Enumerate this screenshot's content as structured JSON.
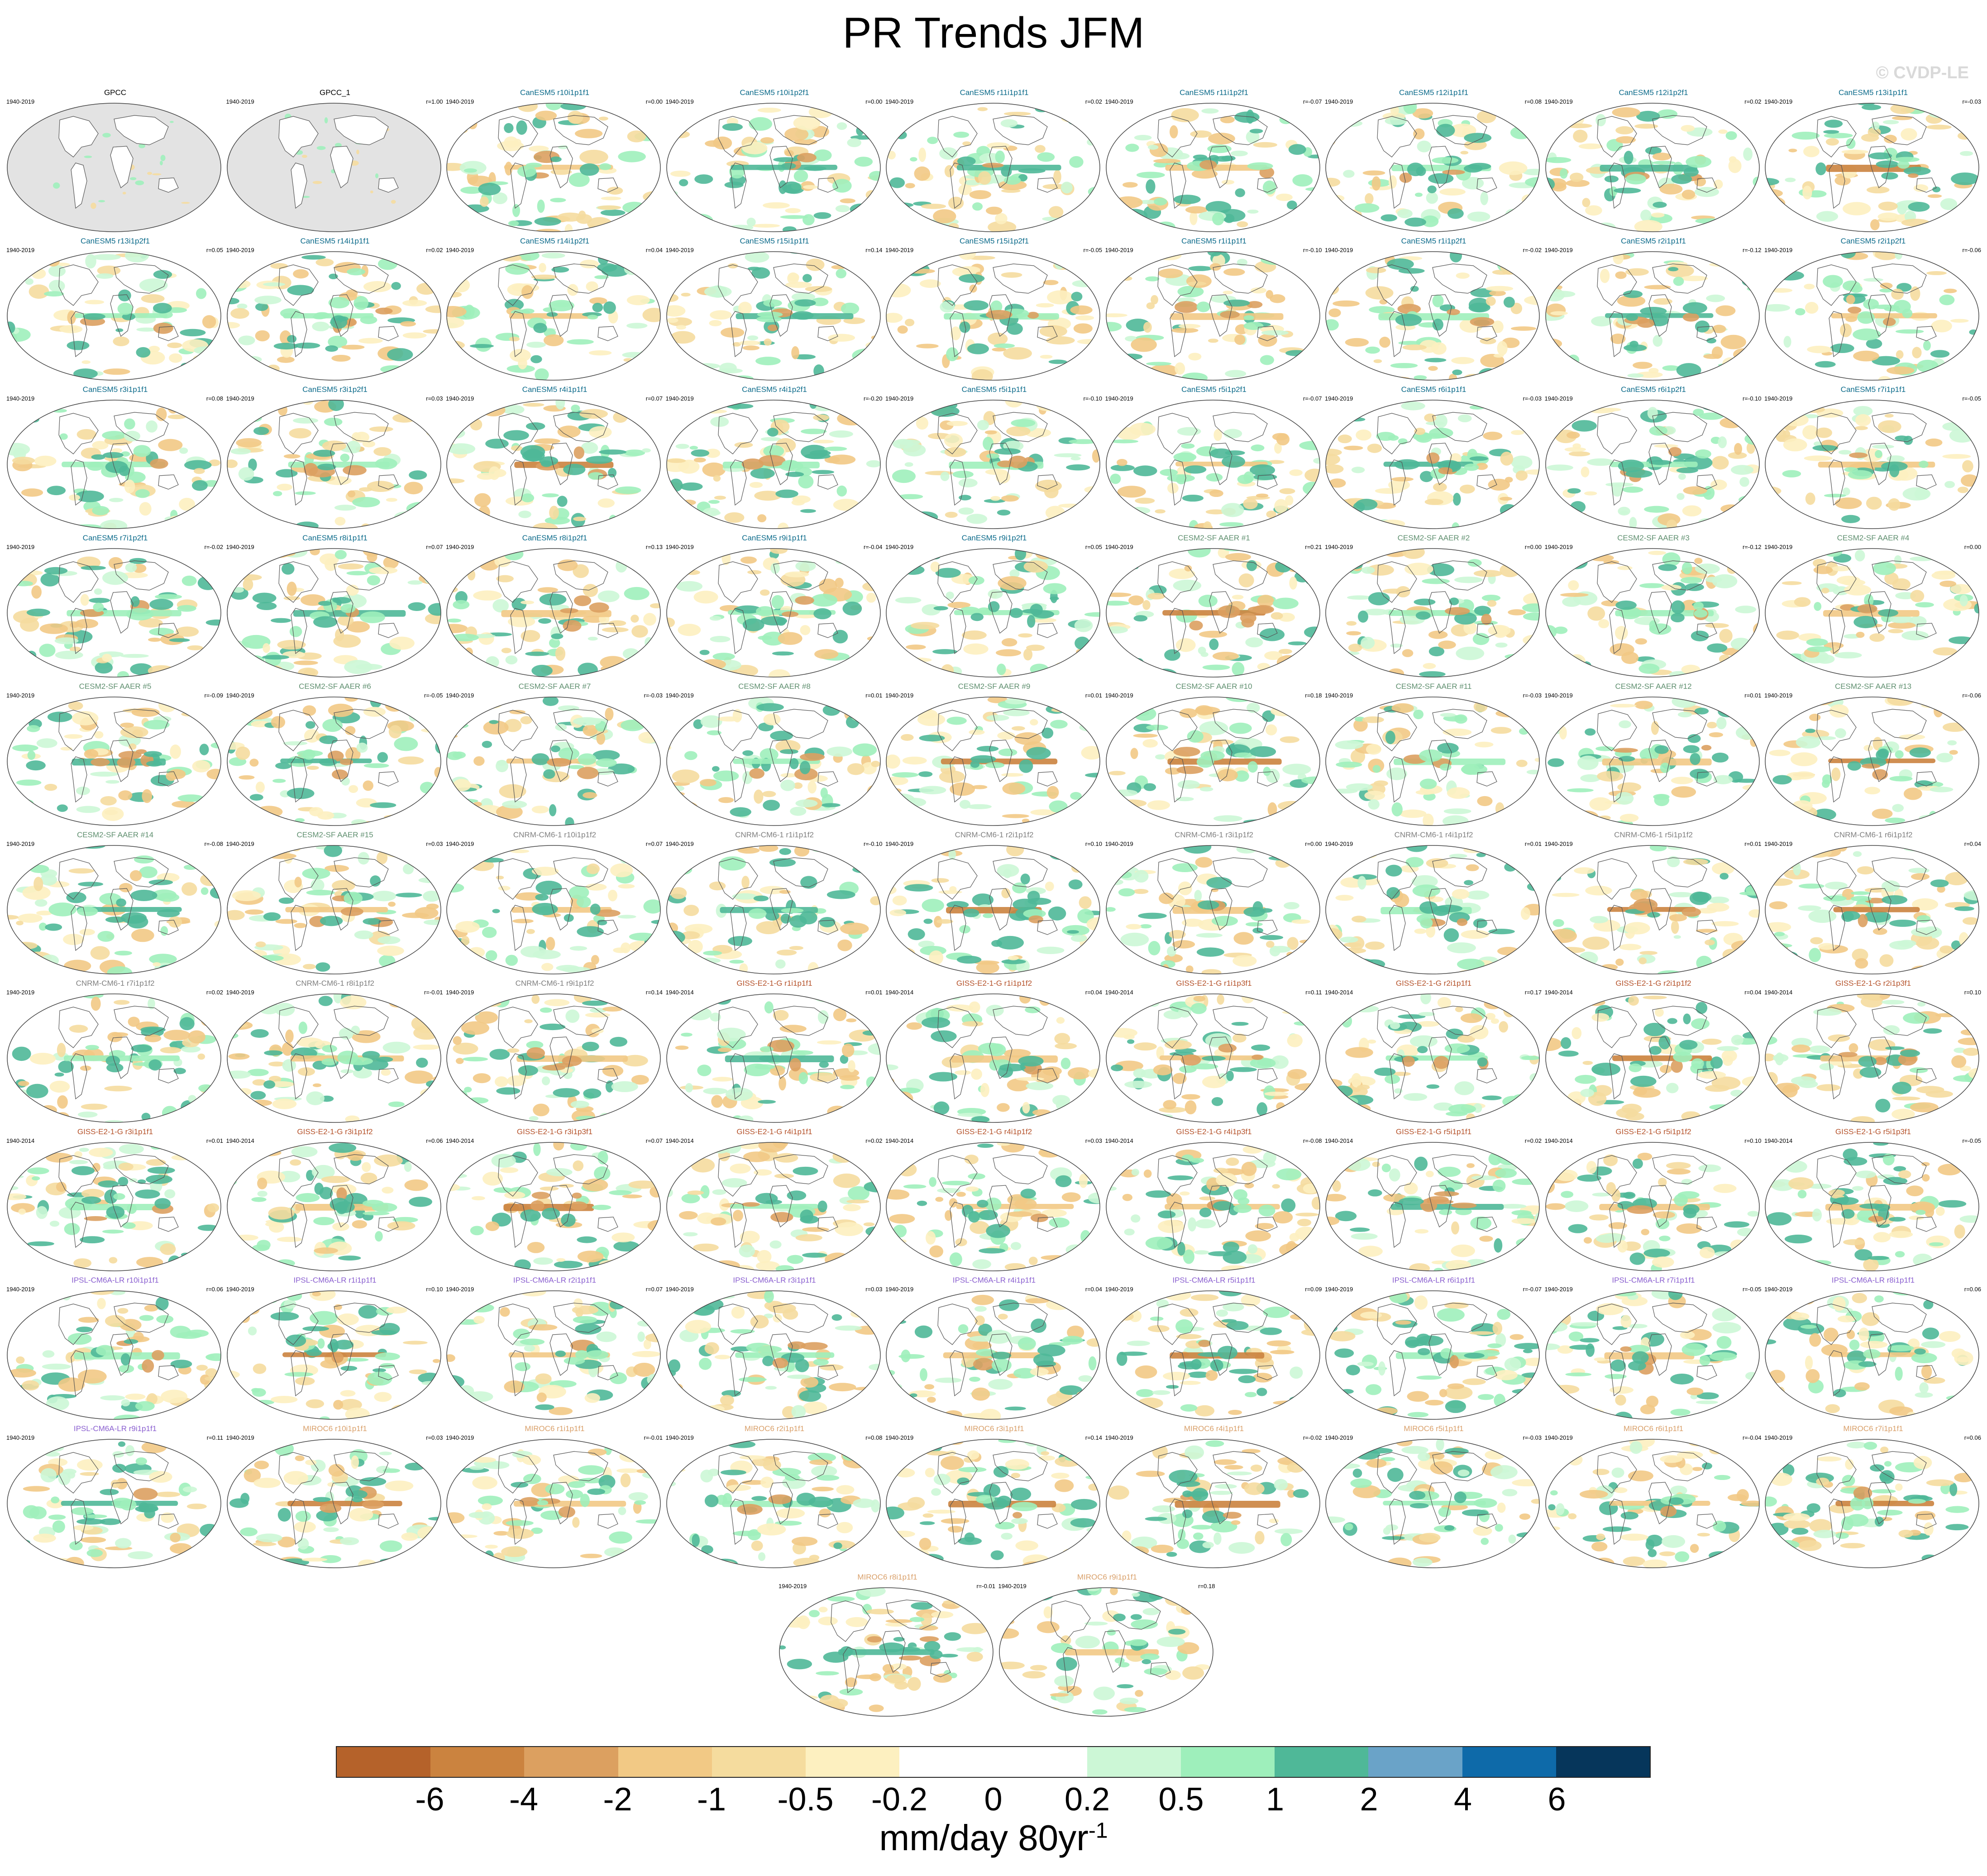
{
  "title": "PR Trends JFM",
  "watermark": "© CVDP-LE",
  "units": {
    "main": "mm/day 80yr",
    "exponent": "-1"
  },
  "colorbar": {
    "colors": [
      "#b5622a",
      "#cb833f",
      "#dca060",
      "#f2c985",
      "#f5dc9e",
      "#fdf0c0",
      "#ffffff",
      "#ffffff",
      "#ccf7d6",
      "#9eefbb",
      "#4fb898",
      "#6aa3c8",
      "#0e6aa9",
      "#06365b"
    ],
    "ticks": [
      "-6",
      "-4",
      "-2",
      "-1",
      "-0.5",
      "-0.2",
      "0",
      "0.2",
      "0.5",
      "1",
      "2",
      "4",
      "6"
    ]
  },
  "legend_colors": {
    "GPCC": "#000000",
    "CanESM5": "#0b6a8a",
    "CESM2-SF AAER": "#5f8f6f",
    "CNRM-CM6-1": "#808080",
    "GISS-E2-1-G": "#b5522a",
    "IPSL-CM6A-LR": "#8a5fd0",
    "MIROC6": "#d9a06a"
  },
  "panels": [
    {
      "label": "GPCC",
      "years": "1940-2019",
      "corr": "",
      "group": "GPCC",
      "obs": true
    },
    {
      "label": "GPCC_1",
      "years": "1940-2019",
      "corr": "r=1.00",
      "group": "GPCC",
      "obs": true
    },
    {
      "label": "CanESM5 r10i1p1f1",
      "years": "1940-2019",
      "corr": "r=0.00",
      "group": "CanESM5"
    },
    {
      "label": "CanESM5 r10i1p2f1",
      "years": "1940-2019",
      "corr": "r=0.00",
      "group": "CanESM5"
    },
    {
      "label": "CanESM5 r11i1p1f1",
      "years": "1940-2019",
      "corr": "r=0.02",
      "group": "CanESM5"
    },
    {
      "label": "CanESM5 r11i1p2f1",
      "years": "1940-2019",
      "corr": "r=-0.07",
      "group": "CanESM5"
    },
    {
      "label": "CanESM5 r12i1p1f1",
      "years": "1940-2019",
      "corr": "r=0.08",
      "group": "CanESM5"
    },
    {
      "label": "CanESM5 r12i1p2f1",
      "years": "1940-2019",
      "corr": "r=0.02",
      "group": "CanESM5"
    },
    {
      "label": "CanESM5 r13i1p1f1",
      "years": "1940-2019",
      "corr": "r=-0.03",
      "group": "CanESM5"
    },
    {
      "label": "CanESM5 r13i1p2f1",
      "years": "1940-2019",
      "corr": "r=0.05",
      "group": "CanESM5"
    },
    {
      "label": "CanESM5 r14i1p1f1",
      "years": "1940-2019",
      "corr": "r=0.02",
      "group": "CanESM5"
    },
    {
      "label": "CanESM5 r14i1p2f1",
      "years": "1940-2019",
      "corr": "r=0.04",
      "group": "CanESM5"
    },
    {
      "label": "CanESM5 r15i1p1f1",
      "years": "1940-2019",
      "corr": "r=0.14",
      "group": "CanESM5"
    },
    {
      "label": "CanESM5 r15i1p2f1",
      "years": "1940-2019",
      "corr": "r=-0.05",
      "group": "CanESM5"
    },
    {
      "label": "CanESM5 r1i1p1f1",
      "years": "1940-2019",
      "corr": "r=-0.10",
      "group": "CanESM5"
    },
    {
      "label": "CanESM5 r1i1p2f1",
      "years": "1940-2019",
      "corr": "r=-0.02",
      "group": "CanESM5"
    },
    {
      "label": "CanESM5 r2i1p1f1",
      "years": "1940-2019",
      "corr": "r=-0.12",
      "group": "CanESM5"
    },
    {
      "label": "CanESM5 r2i1p2f1",
      "years": "1940-2019",
      "corr": "r=-0.06",
      "group": "CanESM5"
    },
    {
      "label": "CanESM5 r3i1p1f1",
      "years": "1940-2019",
      "corr": "r=0.08",
      "group": "CanESM5"
    },
    {
      "label": "CanESM5 r3i1p2f1",
      "years": "1940-2019",
      "corr": "r=0.03",
      "group": "CanESM5"
    },
    {
      "label": "CanESM5 r4i1p1f1",
      "years": "1940-2019",
      "corr": "r=0.07",
      "group": "CanESM5"
    },
    {
      "label": "CanESM5 r4i1p2f1",
      "years": "1940-2019",
      "corr": "r=-0.20",
      "group": "CanESM5"
    },
    {
      "label": "CanESM5 r5i1p1f1",
      "years": "1940-2019",
      "corr": "r=-0.10",
      "group": "CanESM5"
    },
    {
      "label": "CanESM5 r5i1p2f1",
      "years": "1940-2019",
      "corr": "r=-0.07",
      "group": "CanESM5"
    },
    {
      "label": "CanESM5 r6i1p1f1",
      "years": "1940-2019",
      "corr": "r=-0.03",
      "group": "CanESM5"
    },
    {
      "label": "CanESM5 r6i1p2f1",
      "years": "1940-2019",
      "corr": "r=-0.10",
      "group": "CanESM5"
    },
    {
      "label": "CanESM5 r7i1p1f1",
      "years": "1940-2019",
      "corr": "r=-0.05",
      "group": "CanESM5"
    },
    {
      "label": "CanESM5 r7i1p2f1",
      "years": "1940-2019",
      "corr": "r=-0.02",
      "group": "CanESM5"
    },
    {
      "label": "CanESM5 r8i1p1f1",
      "years": "1940-2019",
      "corr": "r=0.07",
      "group": "CanESM5"
    },
    {
      "label": "CanESM5 r8i1p2f1",
      "years": "1940-2019",
      "corr": "r=0.13",
      "group": "CanESM5"
    },
    {
      "label": "CanESM5 r9i1p1f1",
      "years": "1940-2019",
      "corr": "r=-0.04",
      "group": "CanESM5"
    },
    {
      "label": "CanESM5 r9i1p2f1",
      "years": "1940-2019",
      "corr": "r=0.05",
      "group": "CanESM5"
    },
    {
      "label": "CESM2-SF AAER #1",
      "years": "1940-2019",
      "corr": "r=0.21",
      "group": "CESM2-SF AAER"
    },
    {
      "label": "CESM2-SF AAER #2",
      "years": "1940-2019",
      "corr": "r=0.00",
      "group": "CESM2-SF AAER"
    },
    {
      "label": "CESM2-SF AAER #3",
      "years": "1940-2019",
      "corr": "r=-0.12",
      "group": "CESM2-SF AAER"
    },
    {
      "label": "CESM2-SF AAER #4",
      "years": "1940-2019",
      "corr": "r=0.00",
      "group": "CESM2-SF AAER"
    },
    {
      "label": "CESM2-SF AAER #5",
      "years": "1940-2019",
      "corr": "r=-0.09",
      "group": "CESM2-SF AAER"
    },
    {
      "label": "CESM2-SF AAER #6",
      "years": "1940-2019",
      "corr": "r=-0.05",
      "group": "CESM2-SF AAER"
    },
    {
      "label": "CESM2-SF AAER #7",
      "years": "1940-2019",
      "corr": "r=-0.03",
      "group": "CESM2-SF AAER"
    },
    {
      "label": "CESM2-SF AAER #8",
      "years": "1940-2019",
      "corr": "r=0.01",
      "group": "CESM2-SF AAER"
    },
    {
      "label": "CESM2-SF AAER #9",
      "years": "1940-2019",
      "corr": "r=0.01",
      "group": "CESM2-SF AAER"
    },
    {
      "label": "CESM2-SF AAER #10",
      "years": "1940-2019",
      "corr": "r=0.18",
      "group": "CESM2-SF AAER"
    },
    {
      "label": "CESM2-SF AAER #11",
      "years": "1940-2019",
      "corr": "r=-0.03",
      "group": "CESM2-SF AAER"
    },
    {
      "label": "CESM2-SF AAER #12",
      "years": "1940-2019",
      "corr": "r=0.01",
      "group": "CESM2-SF AAER"
    },
    {
      "label": "CESM2-SF AAER #13",
      "years": "1940-2019",
      "corr": "r=-0.06",
      "group": "CESM2-SF AAER"
    },
    {
      "label": "CESM2-SF AAER #14",
      "years": "1940-2019",
      "corr": "r=-0.08",
      "group": "CESM2-SF AAER"
    },
    {
      "label": "CESM2-SF AAER #15",
      "years": "1940-2019",
      "corr": "r=0.03",
      "group": "CESM2-SF AAER"
    },
    {
      "label": "CNRM-CM6-1 r10i1p1f2",
      "years": "1940-2019",
      "corr": "r=0.07",
      "group": "CNRM-CM6-1"
    },
    {
      "label": "CNRM-CM6-1 r1i1p1f2",
      "years": "1940-2019",
      "corr": "r=-0.10",
      "group": "CNRM-CM6-1"
    },
    {
      "label": "CNRM-CM6-1 r2i1p1f2",
      "years": "1940-2019",
      "corr": "r=0.10",
      "group": "CNRM-CM6-1"
    },
    {
      "label": "CNRM-CM6-1 r3i1p1f2",
      "years": "1940-2019",
      "corr": "r=0.00",
      "group": "CNRM-CM6-1"
    },
    {
      "label": "CNRM-CM6-1 r4i1p1f2",
      "years": "1940-2019",
      "corr": "r=0.01",
      "group": "CNRM-CM6-1"
    },
    {
      "label": "CNRM-CM6-1 r5i1p1f2",
      "years": "1940-2019",
      "corr": "r=0.01",
      "group": "CNRM-CM6-1"
    },
    {
      "label": "CNRM-CM6-1 r6i1p1f2",
      "years": "1940-2019",
      "corr": "r=0.04",
      "group": "CNRM-CM6-1"
    },
    {
      "label": "CNRM-CM6-1 r7i1p1f2",
      "years": "1940-2019",
      "corr": "r=0.02",
      "group": "CNRM-CM6-1"
    },
    {
      "label": "CNRM-CM6-1 r8i1p1f2",
      "years": "1940-2019",
      "corr": "r=-0.01",
      "group": "CNRM-CM6-1"
    },
    {
      "label": "CNRM-CM6-1 r9i1p1f2",
      "years": "1940-2019",
      "corr": "r=0.14",
      "group": "CNRM-CM6-1"
    },
    {
      "label": "GISS-E2-1-G r1i1p1f1",
      "years": "1940-2014",
      "corr": "r=0.01",
      "group": "GISS-E2-1-G"
    },
    {
      "label": "GISS-E2-1-G r1i1p1f2",
      "years": "1940-2014",
      "corr": "r=0.04",
      "group": "GISS-E2-1-G"
    },
    {
      "label": "GISS-E2-1-G r1i1p3f1",
      "years": "1940-2014",
      "corr": "r=0.11",
      "group": "GISS-E2-1-G"
    },
    {
      "label": "GISS-E2-1-G r2i1p1f1",
      "years": "1940-2014",
      "corr": "r=0.17",
      "group": "GISS-E2-1-G"
    },
    {
      "label": "GISS-E2-1-G r2i1p1f2",
      "years": "1940-2014",
      "corr": "r=0.04",
      "group": "GISS-E2-1-G"
    },
    {
      "label": "GISS-E2-1-G r2i1p3f1",
      "years": "1940-2014",
      "corr": "r=0.10",
      "group": "GISS-E2-1-G"
    },
    {
      "label": "GISS-E2-1-G r3i1p1f1",
      "years": "1940-2014",
      "corr": "r=0.01",
      "group": "GISS-E2-1-G"
    },
    {
      "label": "GISS-E2-1-G r3i1p1f2",
      "years": "1940-2014",
      "corr": "r=0.06",
      "group": "GISS-E2-1-G"
    },
    {
      "label": "GISS-E2-1-G r3i1p3f1",
      "years": "1940-2014",
      "corr": "r=0.07",
      "group": "GISS-E2-1-G"
    },
    {
      "label": "GISS-E2-1-G r4i1p1f1",
      "years": "1940-2014",
      "corr": "r=0.02",
      "group": "GISS-E2-1-G"
    },
    {
      "label": "GISS-E2-1-G r4i1p1f2",
      "years": "1940-2014",
      "corr": "r=0.03",
      "group": "GISS-E2-1-G"
    },
    {
      "label": "GISS-E2-1-G r4i1p3f1",
      "years": "1940-2014",
      "corr": "r=-0.08",
      "group": "GISS-E2-1-G"
    },
    {
      "label": "GISS-E2-1-G r5i1p1f1",
      "years": "1940-2014",
      "corr": "r=0.02",
      "group": "GISS-E2-1-G"
    },
    {
      "label": "GISS-E2-1-G r5i1p1f2",
      "years": "1940-2014",
      "corr": "r=0.10",
      "group": "GISS-E2-1-G"
    },
    {
      "label": "GISS-E2-1-G r5i1p3f1",
      "years": "1940-2014",
      "corr": "r=-0.05",
      "group": "GISS-E2-1-G"
    },
    {
      "label": "IPSL-CM6A-LR r10i1p1f1",
      "years": "1940-2019",
      "corr": "r=0.06",
      "group": "IPSL-CM6A-LR"
    },
    {
      "label": "IPSL-CM6A-LR r1i1p1f1",
      "years": "1940-2019",
      "corr": "r=0.10",
      "group": "IPSL-CM6A-LR"
    },
    {
      "label": "IPSL-CM6A-LR r2i1p1f1",
      "years": "1940-2019",
      "corr": "r=0.07",
      "group": "IPSL-CM6A-LR"
    },
    {
      "label": "IPSL-CM6A-LR r3i1p1f1",
      "years": "1940-2019",
      "corr": "r=0.03",
      "group": "IPSL-CM6A-LR"
    },
    {
      "label": "IPSL-CM6A-LR r4i1p1f1",
      "years": "1940-2019",
      "corr": "r=0.04",
      "group": "IPSL-CM6A-LR"
    },
    {
      "label": "IPSL-CM6A-LR r5i1p1f1",
      "years": "1940-2019",
      "corr": "r=0.09",
      "group": "IPSL-CM6A-LR"
    },
    {
      "label": "IPSL-CM6A-LR r6i1p1f1",
      "years": "1940-2019",
      "corr": "r=-0.07",
      "group": "IPSL-CM6A-LR"
    },
    {
      "label": "IPSL-CM6A-LR r7i1p1f1",
      "years": "1940-2019",
      "corr": "r=-0.05",
      "group": "IPSL-CM6A-LR"
    },
    {
      "label": "IPSL-CM6A-LR r8i1p1f1",
      "years": "1940-2019",
      "corr": "r=0.06",
      "group": "IPSL-CM6A-LR"
    },
    {
      "label": "IPSL-CM6A-LR r9i1p1f1",
      "years": "1940-2019",
      "corr": "r=0.11",
      "group": "IPSL-CM6A-LR"
    },
    {
      "label": "MIROC6 r10i1p1f1",
      "years": "1940-2019",
      "corr": "r=0.03",
      "group": "MIROC6"
    },
    {
      "label": "MIROC6 r1i1p1f1",
      "years": "1940-2019",
      "corr": "r=-0.01",
      "group": "MIROC6"
    },
    {
      "label": "MIROC6 r2i1p1f1",
      "years": "1940-2019",
      "corr": "r=0.08",
      "group": "MIROC6"
    },
    {
      "label": "MIROC6 r3i1p1f1",
      "years": "1940-2019",
      "corr": "r=0.14",
      "group": "MIROC6"
    },
    {
      "label": "MIROC6 r4i1p1f1",
      "years": "1940-2019",
      "corr": "r=-0.02",
      "group": "MIROC6"
    },
    {
      "label": "MIROC6 r5i1p1f1",
      "years": "1940-2019",
      "corr": "r=-0.03",
      "group": "MIROC6"
    },
    {
      "label": "MIROC6 r6i1p1f1",
      "years": "1940-2019",
      "corr": "r=-0.04",
      "group": "MIROC6"
    },
    {
      "label": "MIROC6 r7i1p1f1",
      "years": "1940-2019",
      "corr": "r=0.06",
      "group": "MIROC6"
    },
    {
      "label": "MIROC6 r8i1p1f1",
      "years": "1940-2019",
      "corr": "r=-0.01",
      "group": "MIROC6"
    },
    {
      "label": "MIROC6 r9i1p1f1",
      "years": "1940-2019",
      "corr": "r=0.18",
      "group": "MIROC6"
    }
  ]
}
